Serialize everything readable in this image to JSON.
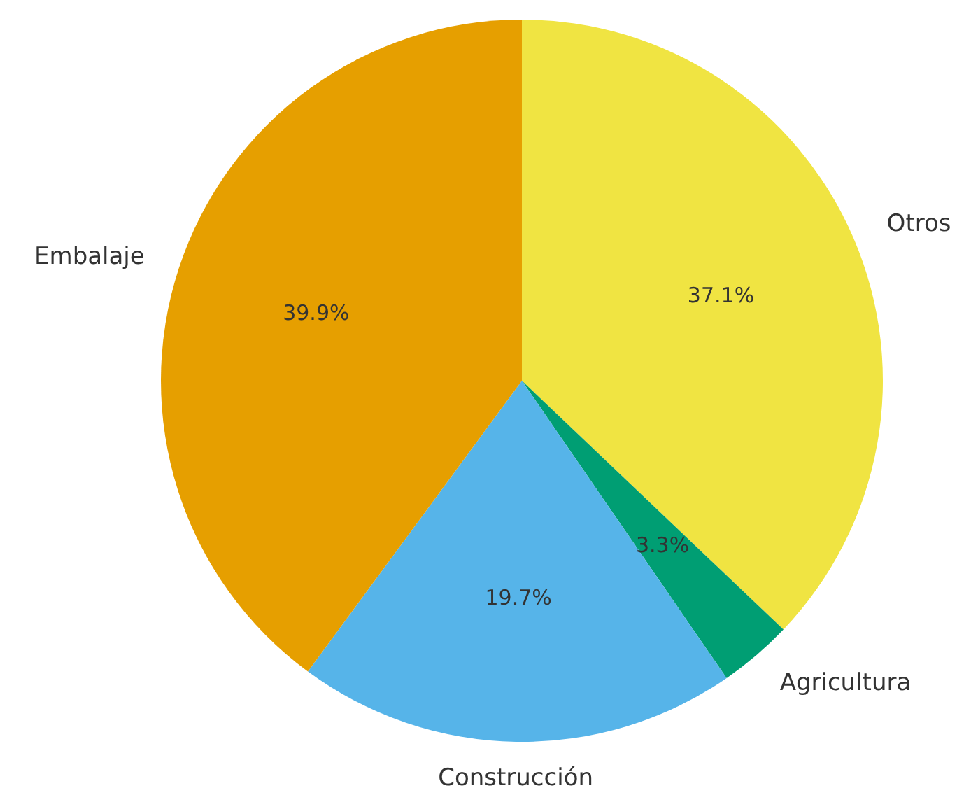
{
  "chart_data": {
    "type": "pie",
    "categories": [
      "Otros",
      "Agricultura",
      "Construcción",
      "Embalaje"
    ],
    "values": [
      37.1,
      3.3,
      19.7,
      39.9
    ],
    "colors": [
      "#f0e442",
      "#009e73",
      "#56b4e9",
      "#e69f00"
    ],
    "value_labels": [
      "37.1%",
      "3.3%",
      "19.7%",
      "39.9%"
    ]
  }
}
